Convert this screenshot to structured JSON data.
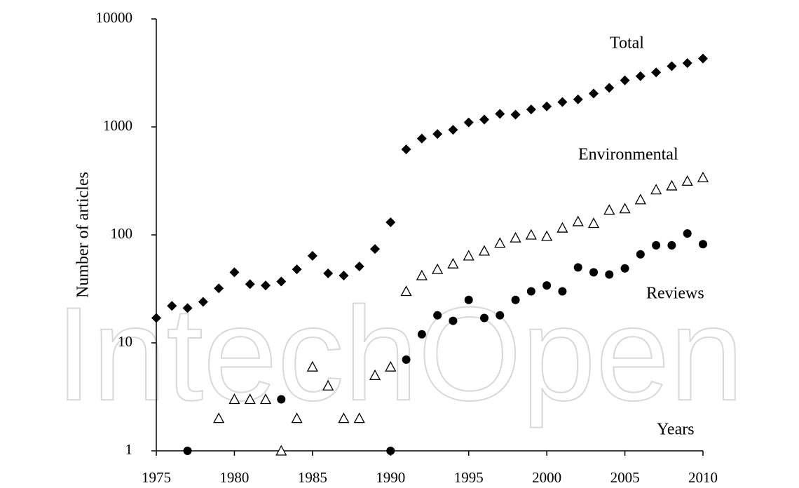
{
  "chart_data": {
    "type": "scatter",
    "watermark": "IntechOpen",
    "xlabel": "Years",
    "ylabel": "Number of articles",
    "xlim": [
      1975,
      2010
    ],
    "xticks": [
      1975,
      1980,
      1985,
      1990,
      1995,
      2000,
      2005,
      2010
    ],
    "ylim": [
      1,
      10000
    ],
    "yticks": [
      1,
      10,
      100,
      1000,
      10000
    ],
    "log_y": true,
    "grid": false,
    "series": [
      {
        "name": "Total",
        "marker": "diamond",
        "color": "#000000",
        "x": [
          1975,
          1976,
          1977,
          1978,
          1979,
          1980,
          1981,
          1982,
          1983,
          1984,
          1985,
          1986,
          1987,
          1988,
          1989,
          1990,
          1991,
          1992,
          1993,
          1994,
          1995,
          1996,
          1997,
          1998,
          1999,
          2000,
          2001,
          2002,
          2003,
          2004,
          2005,
          2006,
          2007,
          2008,
          2009,
          2010
        ],
        "values": [
          17,
          22,
          21,
          24,
          32,
          45,
          35,
          34,
          37,
          48,
          64,
          44,
          42,
          51,
          74,
          131,
          620,
          780,
          860,
          940,
          1100,
          1170,
          1320,
          1300,
          1450,
          1550,
          1700,
          1800,
          2040,
          2300,
          2700,
          2950,
          3200,
          3650,
          3900,
          4300
        ]
      },
      {
        "name": "Environmental",
        "marker": "triangle",
        "color": "#000000",
        "x": [
          1979,
          1980,
          1981,
          1982,
          1983,
          1984,
          1985,
          1986,
          1987,
          1988,
          1989,
          1990,
          1991,
          1992,
          1993,
          1994,
          1995,
          1996,
          1997,
          1998,
          1999,
          2000,
          2001,
          2002,
          2003,
          2004,
          2005,
          2006,
          2007,
          2008,
          2009,
          2010
        ],
        "values": [
          2,
          3,
          3,
          3,
          1,
          2,
          6,
          4,
          2,
          2,
          5,
          6,
          30,
          42,
          48,
          54,
          64,
          71,
          84,
          94,
          100,
          97,
          116,
          133,
          128,
          170,
          175,
          212,
          262,
          285,
          315,
          340
        ]
      },
      {
        "name": "Reviews",
        "marker": "circle",
        "color": "#000000",
        "x": [
          1977,
          1983,
          1990,
          1991,
          1992,
          1993,
          1994,
          1995,
          1996,
          1997,
          1998,
          1999,
          2000,
          2001,
          2002,
          2003,
          2004,
          2005,
          2006,
          2007,
          2008,
          2009,
          2010
        ],
        "values": [
          1,
          3,
          1,
          7,
          12,
          18,
          16,
          25,
          17,
          18,
          25,
          30,
          34,
          30,
          50,
          45,
          43,
          49,
          66,
          80,
          80,
          103,
          82
        ]
      }
    ]
  }
}
